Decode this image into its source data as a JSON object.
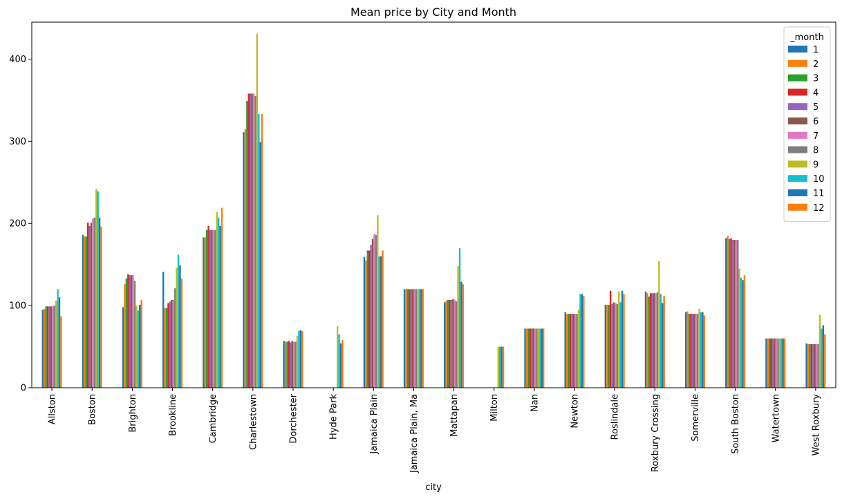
{
  "chart_data": {
    "type": "bar",
    "title": "Mean price by City and Month",
    "xlabel": "city",
    "ylabel": "",
    "ylim": [
      0,
      445
    ],
    "yticks": [
      0,
      100,
      200,
      300,
      400
    ],
    "legend": {
      "title": "_month",
      "placement": "top-right"
    },
    "grid": false,
    "categories": [
      "Allston",
      "Boston",
      "Brighton",
      "Brookline",
      "Cambridge",
      "Charlestown",
      "Dorchester",
      "Hyde Park",
      "Jamaica Plain",
      "Jamaica Plain, Ma",
      "Mattapan",
      "Milton",
      "Nan",
      "Newton",
      "Roslindale",
      "Roxbury Crossing",
      "Somerville",
      "South Boston",
      "Watertown",
      "West Roxbury"
    ],
    "series": [
      {
        "name": "1",
        "color": "#1f77b4",
        "values": [
          95,
          186,
          98,
          141,
          183,
          311,
          57,
          null,
          159,
          120,
          104,
          null,
          72,
          92,
          101,
          117,
          92,
          182,
          60,
          54
        ]
      },
      {
        "name": "2",
        "color": "#ff7f0e",
        "values": [
          96,
          184,
          126,
          97,
          183,
          315,
          56,
          null,
          155,
          120,
          106,
          null,
          72,
          90,
          101,
          115,
          93,
          185,
          60,
          53
        ]
      },
      {
        "name": "3",
        "color": "#2ca02c",
        "values": [
          99,
          184,
          133,
          97,
          192,
          349,
          56,
          null,
          167,
          120,
          107,
          null,
          72,
          90,
          101,
          111,
          90,
          181,
          60,
          53
        ]
      },
      {
        "name": "4",
        "color": "#d62728",
        "values": [
          99,
          201,
          138,
          103,
          197,
          358,
          57,
          null,
          167,
          120,
          107,
          null,
          72,
          90,
          118,
          115,
          90,
          182,
          60,
          53
        ]
      },
      {
        "name": "5",
        "color": "#9467bd",
        "values": [
          99,
          197,
          137,
          105,
          192,
          358,
          55,
          null,
          174,
          120,
          107,
          null,
          72,
          90,
          102,
          115,
          90,
          180,
          60,
          53
        ]
      },
      {
        "name": "6",
        "color": "#8c564b",
        "values": [
          99,
          201,
          137,
          107,
          192,
          358,
          57,
          null,
          181,
          120,
          108,
          null,
          72,
          90,
          104,
          115,
          90,
          180,
          60,
          53
        ]
      },
      {
        "name": "7",
        "color": "#e377c2",
        "values": [
          99,
          206,
          137,
          107,
          192,
          358,
          56,
          null,
          187,
          120,
          107,
          null,
          72,
          90,
          103,
          115,
          90,
          180,
          60,
          53
        ]
      },
      {
        "name": "8",
        "color": "#7f7f7f",
        "values": [
          100,
          207,
          130,
          121,
          192,
          355,
          56,
          null,
          186,
          120,
          105,
          null,
          72,
          90,
          102,
          116,
          90,
          180,
          60,
          53
        ]
      },
      {
        "name": "9",
        "color": "#bcbd22",
        "values": [
          106,
          242,
          100,
          146,
          214,
          431,
          63,
          75,
          210,
          120,
          148,
          50,
          72,
          95,
          117,
          154,
          96,
          145,
          60,
          89
        ]
      },
      {
        "name": "10",
        "color": "#17becf",
        "values": [
          120,
          239,
          94,
          162,
          207,
          333,
          69,
          65,
          160,
          120,
          170,
          50,
          72,
          114,
          104,
          114,
          92,
          134,
          60,
          72
        ]
      },
      {
        "name": "11",
        "color": "#1f77b4",
        "values": [
          110,
          207,
          101,
          149,
          197,
          299,
          70,
          54,
          160,
          120,
          129,
          50,
          72,
          114,
          118,
          103,
          92,
          131,
          60,
          76
        ]
      },
      {
        "name": "12",
        "color": "#ff7f0e",
        "values": [
          87,
          196,
          107,
          133,
          219,
          333,
          69,
          58,
          167,
          120,
          126,
          50,
          72,
          112,
          114,
          112,
          88,
          137,
          60,
          65
        ]
      }
    ]
  }
}
